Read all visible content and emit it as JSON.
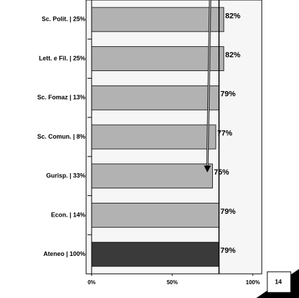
{
  "chart_data": {
    "type": "barh",
    "categories": [
      "Sc. Polit. | 25%",
      "Lett. e Fil. | 25%",
      "Sc. Fomaz | 13%",
      "Sc. Comun. | 8%",
      "Gurisp. | 33%",
      "Econ. | 14%",
      "Ateneo | 100%"
    ],
    "values": [
      82,
      82,
      79,
      77,
      75,
      79,
      79
    ],
    "value_labels": [
      "82%",
      "82%",
      "79%",
      "77%",
      "75%",
      "79%",
      "79%"
    ],
    "colors": [
      "#b2b2b2",
      "#b2b2b2",
      "#b2b2b2",
      "#b2b2b2",
      "#b2b2b2",
      "#b2b2b2",
      "#3a3a3a"
    ],
    "reference_value": 79,
    "xlim": [
      0,
      100
    ],
    "xticks": [
      {
        "value": 0,
        "label": "0%"
      },
      {
        "value": 50,
        "label": "50%"
      },
      {
        "value": 100,
        "label": "100%"
      }
    ],
    "page_number": "14"
  }
}
